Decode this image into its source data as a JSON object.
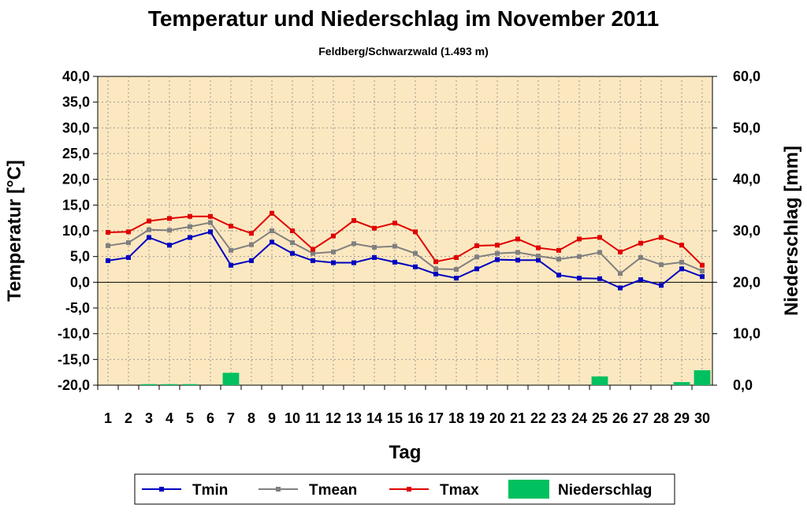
{
  "chart_data": {
    "type": "line",
    "title": "Temperatur und Niederschlag im November 2011",
    "subtitle": "Feldberg/Schwarzwald (1.493 m)",
    "xlabel": "Tag",
    "ylabel_left": "Temperatur [°C]",
    "ylabel_right": "Niederschlag [mm]",
    "y_left_lim": [
      -20,
      40
    ],
    "y_right_lim": [
      0,
      60
    ],
    "y_left_ticks": [
      "40,0",
      "35,0",
      "30,0",
      "25,0",
      "20,0",
      "15,0",
      "10,0",
      "5,0",
      "0,0",
      "-5,0",
      "-10,0",
      "-15,0",
      "-20,0"
    ],
    "y_right_ticks": [
      "60,0",
      "50,0",
      "40,0",
      "30,0",
      "20,0",
      "10,0",
      "0,0"
    ],
    "categories": [
      "1",
      "2",
      "3",
      "4",
      "5",
      "6",
      "7",
      "8",
      "9",
      "10",
      "11",
      "12",
      "13",
      "14",
      "15",
      "16",
      "17",
      "18",
      "19",
      "20",
      "21",
      "22",
      "23",
      "24",
      "25",
      "26",
      "27",
      "28",
      "29",
      "30"
    ],
    "grid": true,
    "legend_position": "bottom",
    "colors": {
      "background_plot": "#FCE8C0",
      "tmin": "#0000C0",
      "tmean": "#808080",
      "tmax": "#E00000",
      "niederschlag": "#00C060"
    },
    "series": [
      {
        "name": "Tmin",
        "type": "line",
        "axis": "left",
        "values": [
          4.2,
          4.8,
          8.7,
          7.2,
          8.7,
          9.8,
          3.3,
          4.2,
          7.8,
          5.6,
          4.2,
          3.8,
          3.8,
          4.8,
          3.9,
          3.0,
          1.6,
          0.8,
          2.6,
          4.4,
          4.3,
          4.3,
          1.4,
          0.8,
          0.7,
          -1.1,
          0.5,
          -0.6,
          2.6,
          1.1
        ]
      },
      {
        "name": "Tmean",
        "type": "line",
        "axis": "left",
        "values": [
          7.1,
          7.7,
          10.2,
          10.1,
          10.8,
          11.6,
          6.2,
          7.3,
          10.0,
          7.7,
          5.6,
          5.9,
          7.5,
          6.8,
          7.0,
          5.6,
          2.6,
          2.5,
          4.9,
          5.6,
          5.8,
          5.1,
          4.5,
          5.0,
          5.8,
          1.7,
          4.8,
          3.4,
          3.9,
          2.2
        ]
      },
      {
        "name": "Tmax",
        "type": "line",
        "axis": "left",
        "values": [
          9.7,
          9.8,
          11.9,
          12.4,
          12.8,
          12.8,
          10.9,
          9.5,
          13.4,
          10.0,
          6.4,
          9.0,
          12.0,
          10.5,
          11.5,
          9.8,
          4.0,
          4.8,
          7.1,
          7.2,
          8.4,
          6.7,
          6.2,
          8.4,
          8.7,
          5.9,
          7.6,
          8.7,
          7.2,
          3.3
        ]
      },
      {
        "name": "Niederschlag",
        "type": "bar",
        "axis": "right",
        "values": [
          0,
          0,
          0.2,
          0.2,
          0.2,
          0,
          2.4,
          0,
          0,
          0,
          0,
          0,
          0,
          0,
          0,
          0,
          0,
          0,
          0,
          0,
          0,
          0,
          0,
          0,
          1.7,
          0,
          0,
          0,
          0.6,
          2.9
        ]
      }
    ]
  }
}
